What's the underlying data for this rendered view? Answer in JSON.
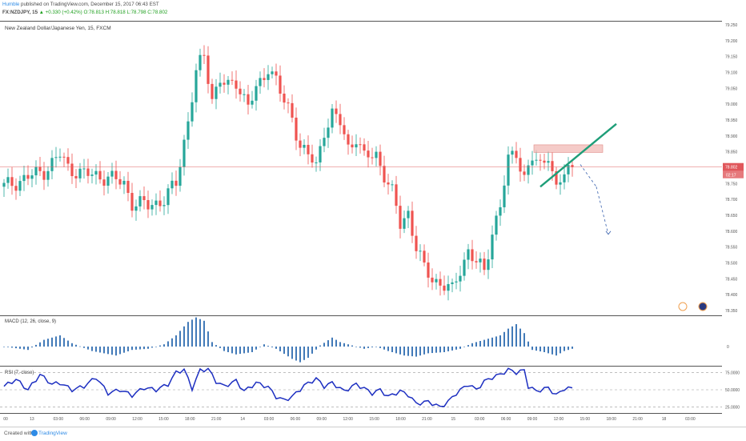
{
  "header": {
    "author": "Humble",
    "published_text": " published on TradingView.com, December 15, 2017 06:43 EST",
    "symbol": "FX:NZDJPY, 15",
    "change": "▲ +0.330 (+0.42%)",
    "ohlc": "O:78.813 H:78.818 L:78.798 C:78.802"
  },
  "main_title": "New Zealand Dollar/Japanese Yen, 15, FXCM",
  "macd_title": "MACD (12, 26, close, 9)",
  "rsi_title": "RSI (7, close)",
  "footer": {
    "created": "Created with",
    "brand": "TradingView"
  },
  "colors": {
    "bull": "#26a69a",
    "bear": "#ef5350",
    "trend": "#1e9e78",
    "zone": "#f2b9b6",
    "price_line": "#e06060",
    "macd": "#2e6bb0",
    "rsi": "#1d2fc1"
  },
  "chart_data": [
    {
      "type": "candlestick",
      "title": "New Zealand Dollar/Japanese Yen, 15, FXCM",
      "ylim": [
        78.35,
        79.25
      ],
      "y_ticks": [
        "79.250",
        "79.200",
        "79.150",
        "79.100",
        "79.050",
        "79.000",
        "78.950",
        "78.900",
        "78.850",
        "78.800",
        "78.750",
        "78.700",
        "78.650",
        "78.600",
        "78.550",
        "78.500",
        "78.450",
        "78.400",
        "78.350"
      ],
      "current_price": "78.802",
      "countdown": "02:17",
      "close_path": [
        [
          0,
          78.74
        ],
        [
          6,
          78.77
        ],
        [
          10,
          78.79
        ],
        [
          14,
          78.84
        ],
        [
          16,
          78.8
        ],
        [
          20,
          78.78
        ],
        [
          26,
          78.77
        ],
        [
          30,
          78.75
        ],
        [
          32,
          78.69
        ],
        [
          36,
          78.68
        ],
        [
          40,
          78.7
        ],
        [
          43,
          78.75
        ],
        [
          46,
          78.95
        ],
        [
          48,
          79.1
        ],
        [
          50,
          79.15
        ],
        [
          52,
          79.02
        ],
        [
          54,
          79.08
        ],
        [
          56,
          79.05
        ],
        [
          58,
          79.07
        ],
        [
          61,
          79.0
        ],
        [
          64,
          79.06
        ],
        [
          66,
          79.12
        ],
        [
          68,
          79.08
        ],
        [
          70,
          79.0
        ],
        [
          72,
          78.96
        ],
        [
          74,
          78.87
        ],
        [
          76,
          78.84
        ],
        [
          78,
          78.8
        ],
        [
          80,
          78.92
        ],
        [
          82,
          78.97
        ],
        [
          84,
          78.94
        ],
        [
          86,
          78.86
        ],
        [
          88,
          78.9
        ],
        [
          90,
          78.83
        ],
        [
          93,
          78.84
        ],
        [
          95,
          78.78
        ],
        [
          97,
          78.72
        ],
        [
          99,
          78.62
        ],
        [
          101,
          78.66
        ],
        [
          103,
          78.55
        ],
        [
          105,
          78.48
        ],
        [
          107,
          78.45
        ],
        [
          110,
          78.43
        ],
        [
          112,
          78.41
        ],
        [
          114,
          78.48
        ],
        [
          116,
          78.54
        ],
        [
          118,
          78.5
        ],
        [
          120,
          78.47
        ],
        [
          122,
          78.6
        ],
        [
          124,
          78.68
        ],
        [
          126,
          78.82
        ],
        [
          128,
          78.85
        ],
        [
          130,
          78.77
        ],
        [
          132,
          78.83
        ],
        [
          134,
          78.8
        ],
        [
          136,
          78.85
        ],
        [
          138,
          78.73
        ],
        [
          140,
          78.78
        ],
        [
          142,
          78.8
        ]
      ],
      "annotations": {
        "resistance_zone": [
          78.848,
          78.872
        ],
        "trendline": [
          [
            134,
            78.74
          ],
          [
            149,
            78.9
          ]
        ],
        "projection_points": [
          [
            144,
            78.81
          ],
          [
            148,
            78.74
          ],
          [
            151,
            78.59
          ]
        ]
      }
    },
    {
      "type": "bar",
      "title": "MACD (12, 26, close, 9)",
      "zero_label": "0",
      "values_path": [
        [
          0,
          0.0
        ],
        [
          6,
          -0.3
        ],
        [
          10,
          0.6
        ],
        [
          14,
          1.0
        ],
        [
          17,
          0.3
        ],
        [
          22,
          -0.4
        ],
        [
          28,
          -0.8
        ],
        [
          32,
          -0.3
        ],
        [
          36,
          -0.2
        ],
        [
          40,
          0.2
        ],
        [
          43,
          1.0
        ],
        [
          46,
          2.2
        ],
        [
          48,
          2.6
        ],
        [
          50,
          2.3
        ],
        [
          52,
          0.4
        ],
        [
          55,
          -0.4
        ],
        [
          58,
          -0.7
        ],
        [
          62,
          -0.5
        ],
        [
          65,
          0.2
        ],
        [
          68,
          -0.2
        ],
        [
          72,
          -1.1
        ],
        [
          74,
          -1.4
        ],
        [
          76,
          -1.0
        ],
        [
          79,
          0.1
        ],
        [
          82,
          0.8
        ],
        [
          84,
          0.4
        ],
        [
          88,
          0.0
        ],
        [
          90,
          -0.2
        ],
        [
          93,
          0.0
        ],
        [
          96,
          -0.4
        ],
        [
          100,
          -0.8
        ],
        [
          103,
          -0.9
        ],
        [
          106,
          -0.6
        ],
        [
          110,
          -0.5
        ],
        [
          114,
          -0.2
        ],
        [
          117,
          0.3
        ],
        [
          120,
          0.6
        ],
        [
          124,
          1.0
        ],
        [
          126,
          1.6
        ],
        [
          128,
          2.0
        ],
        [
          130,
          1.2
        ],
        [
          132,
          -0.3
        ],
        [
          135,
          -0.5
        ],
        [
          138,
          -0.8
        ],
        [
          140,
          -0.4
        ],
        [
          142,
          -0.2
        ]
      ]
    },
    {
      "type": "line",
      "title": "RSI (7, close)",
      "ylim": [
        20,
        80
      ],
      "y_ticks": [
        "75.0000",
        "50.0000",
        "25.0000"
      ],
      "values_path": [
        [
          0,
          55
        ],
        [
          3,
          65
        ],
        [
          6,
          50
        ],
        [
          9,
          72
        ],
        [
          12,
          58
        ],
        [
          14,
          60
        ],
        [
          17,
          50
        ],
        [
          20,
          55
        ],
        [
          23,
          68
        ],
        [
          26,
          45
        ],
        [
          29,
          50
        ],
        [
          32,
          42
        ],
        [
          35,
          53
        ],
        [
          38,
          50
        ],
        [
          41,
          58
        ],
        [
          43,
          75
        ],
        [
          45,
          79
        ],
        [
          47,
          52
        ],
        [
          49,
          78
        ],
        [
          51,
          80
        ],
        [
          53,
          62
        ],
        [
          55,
          55
        ],
        [
          58,
          63
        ],
        [
          60,
          48
        ],
        [
          63,
          60
        ],
        [
          66,
          54
        ],
        [
          68,
          40
        ],
        [
          70,
          35
        ],
        [
          72,
          40
        ],
        [
          75,
          56
        ],
        [
          78,
          66
        ],
        [
          80,
          55
        ],
        [
          82,
          60
        ],
        [
          85,
          48
        ],
        [
          88,
          58
        ],
        [
          90,
          52
        ],
        [
          92,
          45
        ],
        [
          94,
          50
        ],
        [
          96,
          40
        ],
        [
          99,
          48
        ],
        [
          101,
          43
        ],
        [
          103,
          30
        ],
        [
          106,
          33
        ],
        [
          109,
          25
        ],
        [
          111,
          33
        ],
        [
          113,
          45
        ],
        [
          116,
          58
        ],
        [
          118,
          50
        ],
        [
          120,
          62
        ],
        [
          122,
          68
        ],
        [
          124,
          72
        ],
        [
          126,
          79
        ],
        [
          128,
          75
        ],
        [
          130,
          78
        ],
        [
          131,
          55
        ],
        [
          133,
          48
        ],
        [
          136,
          53
        ],
        [
          138,
          42
        ],
        [
          140,
          52
        ],
        [
          142,
          52
        ]
      ]
    }
  ],
  "x_axis": {
    "labels": [
      "00",
      "13",
      "03:00",
      "06:00",
      "09:00",
      "12:00",
      "15:00",
      "18:00",
      "21:00",
      "14",
      "03:00",
      "06:00",
      "09:00",
      "12:00",
      "15:00",
      "18:00",
      "21:00",
      "15",
      "03:00",
      "06:00",
      "09:00",
      "12:00",
      "15:00",
      "18:00",
      "21:00",
      "18",
      "03:00"
    ]
  }
}
